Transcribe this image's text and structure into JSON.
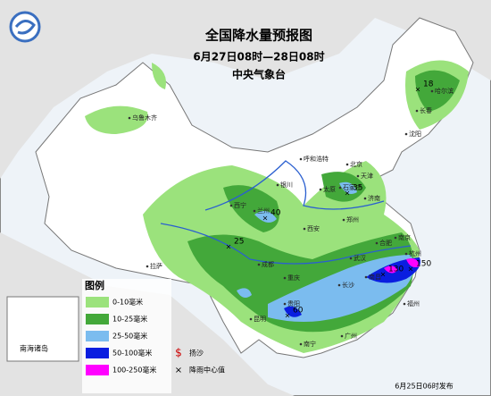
{
  "header": {
    "title": "全国降水量预报图",
    "period": "6月27日08时—28日08时",
    "issuer": "中央气象台"
  },
  "legend": {
    "title": "图例",
    "items": [
      {
        "label": "0-10毫米",
        "color": "#9be27c"
      },
      {
        "label": "10-25毫米",
        "color": "#43a83a"
      },
      {
        "label": "25-50毫米",
        "color": "#7bbcef"
      },
      {
        "label": "50-100毫米",
        "color": "#0a1ee0"
      },
      {
        "label": "100-250毫米",
        "color": "#ff00ff"
      }
    ],
    "sand_label": "扬沙",
    "center_label": "降雨中心值"
  },
  "inset_label": "南海诸岛",
  "footer": "6月25日06时发布",
  "cities": [
    {
      "name": "乌鲁木齐"
    },
    {
      "name": "哈尔滨"
    },
    {
      "name": "长春"
    },
    {
      "name": "沈阳"
    },
    {
      "name": "呼和浩特"
    },
    {
      "name": "北京"
    },
    {
      "name": "天津"
    },
    {
      "name": "太原"
    },
    {
      "name": "石家庄"
    },
    {
      "name": "济南"
    },
    {
      "name": "银川"
    },
    {
      "name": "西宁"
    },
    {
      "name": "兰州"
    },
    {
      "name": "郑州"
    },
    {
      "name": "西安"
    },
    {
      "name": "拉萨"
    },
    {
      "name": "成都"
    },
    {
      "name": "重庆"
    },
    {
      "name": "合肥"
    },
    {
      "name": "南京"
    },
    {
      "name": "武汉"
    },
    {
      "name": "长沙"
    },
    {
      "name": "南昌"
    },
    {
      "name": "杭州"
    },
    {
      "name": "福州"
    },
    {
      "name": "贵阳"
    },
    {
      "name": "昆明"
    },
    {
      "name": "南宁"
    },
    {
      "name": "广州"
    }
  ],
  "centers": [
    {
      "value": 18
    },
    {
      "value": 40
    },
    {
      "value": 25
    },
    {
      "value": 35
    },
    {
      "value": 130
    },
    {
      "value": 150
    },
    {
      "value": 60
    }
  ]
}
